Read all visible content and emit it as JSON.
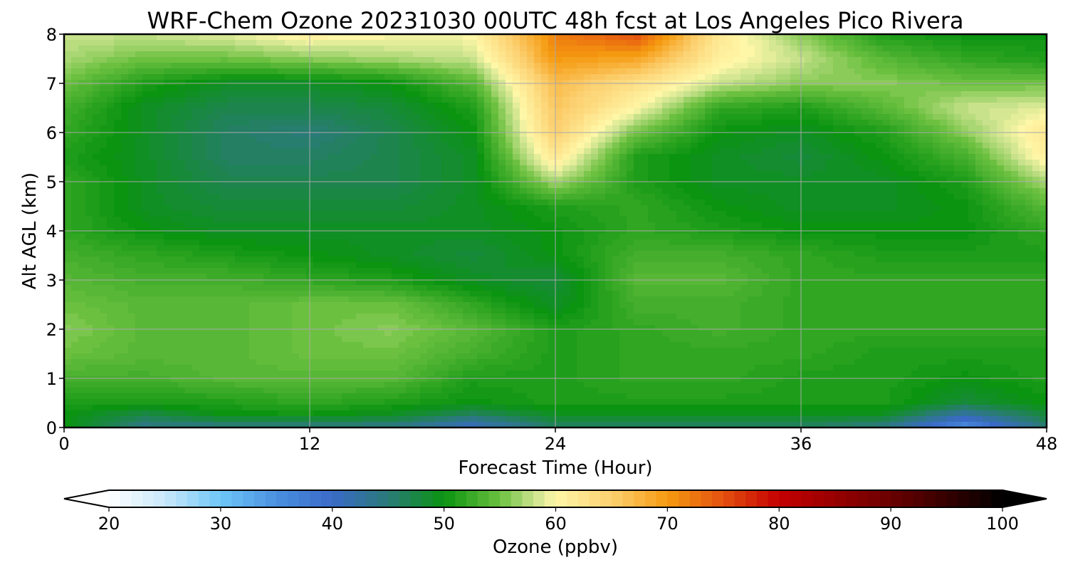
{
  "chart_data": {
    "type": "heatmap",
    "title": "WRF-Chem Ozone  20231030 00UTC 48h fcst at Los Angeles Pico Rivera",
    "xlabel": "Forecast Time (Hour)",
    "ylabel": "Alt AGL (km)",
    "xlim": [
      0,
      48
    ],
    "ylim": [
      0,
      8
    ],
    "xticks": [
      0,
      12,
      24,
      36,
      48
    ],
    "yticks": [
      0,
      1,
      2,
      3,
      4,
      5,
      6,
      7,
      8
    ],
    "grid": true,
    "x": [
      0,
      4,
      8,
      12,
      16,
      20,
      24,
      28,
      32,
      36,
      40,
      44,
      48
    ],
    "y": [
      0,
      0.25,
      0.5,
      1,
      1.5,
      2,
      2.5,
      3,
      3.5,
      4,
      4.5,
      5,
      5.5,
      6,
      6.5,
      7,
      7.5,
      8
    ],
    "values": [
      [
        50,
        44,
        44,
        44,
        44,
        40,
        46,
        46,
        46,
        46,
        44,
        35,
        45
      ],
      [
        50,
        47,
        50,
        50,
        49,
        46,
        49,
        49,
        49,
        49,
        49,
        42,
        48
      ],
      [
        51,
        51,
        51,
        52,
        51,
        50,
        51,
        51,
        51,
        51,
        51,
        48,
        50
      ],
      [
        53,
        53,
        54,
        54,
        54,
        51,
        51,
        52,
        52,
        51,
        51,
        50,
        51
      ],
      [
        55,
        54,
        54,
        55,
        55,
        53,
        51,
        52,
        52,
        52,
        51,
        51,
        51
      ],
      [
        56,
        54,
        54,
        55,
        56,
        54,
        51,
        52,
        53,
        52,
        52,
        52,
        52
      ],
      [
        55,
        54,
        54,
        55,
        55,
        52,
        49,
        53,
        53,
        52,
        52,
        52,
        52
      ],
      [
        54,
        53,
        53,
        52,
        51,
        49,
        48,
        54,
        54,
        52,
        52,
        52,
        52
      ],
      [
        53,
        52,
        51,
        50,
        49,
        48,
        50,
        53,
        53,
        52,
        51,
        51,
        51
      ],
      [
        52,
        50,
        49,
        49,
        49,
        49,
        50,
        52,
        51,
        50,
        50,
        50,
        52
      ],
      [
        52,
        49,
        48,
        48,
        48,
        49,
        51,
        52,
        50,
        49,
        49,
        50,
        54
      ],
      [
        52,
        49,
        47,
        47,
        47,
        49,
        57,
        51,
        49,
        49,
        49,
        51,
        57
      ],
      [
        51,
        49,
        46,
        46,
        47,
        49,
        62,
        51,
        49,
        48,
        50,
        53,
        61
      ],
      [
        52,
        49,
        46,
        45,
        47,
        50,
        65,
        55,
        50,
        49,
        51,
        56,
        62
      ],
      [
        53,
        49,
        47,
        47,
        48,
        51,
        66,
        60,
        52,
        51,
        54,
        58,
        59
      ],
      [
        55,
        51,
        49,
        49,
        50,
        54,
        67,
        63,
        58,
        56,
        56,
        55,
        55
      ],
      [
        57,
        55,
        55,
        56,
        57,
        58,
        70,
        69,
        61,
        58,
        54,
        52,
        51
      ],
      [
        58,
        58,
        59,
        61,
        60,
        60,
        72,
        75,
        62,
        56,
        51,
        50,
        50
      ]
    ],
    "colorbar": {
      "label": "Ozone  (ppbv)",
      "min": 20,
      "max": 100,
      "ticks": [
        20,
        30,
        40,
        50,
        60,
        70,
        80,
        90,
        100
      ],
      "extend": "both",
      "colors": [
        {
          "value": 20,
          "color": "#ffffff"
        },
        {
          "value": 25,
          "color": "#c9e8fb"
        },
        {
          "value": 30,
          "color": "#6ec6f7"
        },
        {
          "value": 35,
          "color": "#4a90e0"
        },
        {
          "value": 40,
          "color": "#3a6ac8"
        },
        {
          "value": 45,
          "color": "#2a7a78"
        },
        {
          "value": 50,
          "color": "#0a9410"
        },
        {
          "value": 55,
          "color": "#6cc040"
        },
        {
          "value": 58,
          "color": "#c8e28c"
        },
        {
          "value": 60,
          "color": "#fff7a8"
        },
        {
          "value": 65,
          "color": "#fcd070"
        },
        {
          "value": 70,
          "color": "#f59a10"
        },
        {
          "value": 75,
          "color": "#e45010"
        },
        {
          "value": 80,
          "color": "#c40000"
        },
        {
          "value": 90,
          "color": "#6a0000"
        },
        {
          "value": 100,
          "color": "#000000"
        }
      ]
    }
  }
}
